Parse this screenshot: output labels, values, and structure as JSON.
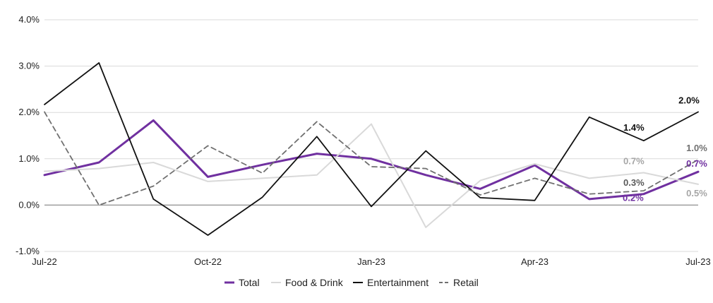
{
  "chart_data": {
    "type": "line",
    "title": "",
    "xlabel": "",
    "ylabel": "",
    "x": [
      "Jul-22",
      "Aug-22",
      "Sep-22",
      "Oct-22",
      "Nov-22",
      "Dec-22",
      "Jan-23",
      "Feb-23",
      "Mar-23",
      "Apr-23",
      "May-23",
      "Jun-23",
      "Jul-23"
    ],
    "x_tick_labels": [
      "Jul-22",
      "Oct-22",
      "Jan-23",
      "Apr-23",
      "Jul-23"
    ],
    "y_tick_labels": [
      "4.0%",
      "3.0%",
      "2.0%",
      "1.0%",
      "0.0%",
      "-1.0%"
    ],
    "ylim": [
      -1.0,
      4.0
    ],
    "y_ticks": [
      4.0,
      3.0,
      2.0,
      1.0,
      0.0,
      -1.0
    ],
    "grid": "horizontal",
    "legend_position": "bottom",
    "series": [
      {
        "name": "Total",
        "color": "#7030A0",
        "style": "solid",
        "values": [
          0.65,
          0.92,
          1.83,
          0.61,
          0.87,
          1.11,
          1.0,
          0.65,
          0.35,
          0.86,
          0.13,
          0.24,
          0.72
        ]
      },
      {
        "name": "Food & Drink",
        "color": "#D9D9D9",
        "style": "solid",
        "values": [
          0.73,
          0.79,
          0.92,
          0.51,
          0.58,
          0.65,
          1.75,
          -0.48,
          0.53,
          0.89,
          0.58,
          0.7,
          0.45
        ]
      },
      {
        "name": "Entertainment",
        "color": "#111111",
        "style": "solid",
        "values": [
          2.17,
          3.07,
          0.13,
          -0.65,
          0.17,
          1.48,
          -0.03,
          1.17,
          0.16,
          0.1,
          1.9,
          1.39,
          2.01
        ]
      },
      {
        "name": "Retail",
        "color": "#707070",
        "style": "dashed",
        "values": [
          2.01,
          0.0,
          0.41,
          1.28,
          0.69,
          1.8,
          0.83,
          0.79,
          0.22,
          0.58,
          0.24,
          0.31,
          0.98
        ]
      }
    ],
    "annotations": [
      {
        "text": "2.0%",
        "series": "Entertainment",
        "index": 12,
        "color": "#111111"
      },
      {
        "text": "1.4%",
        "series": "Entertainment",
        "index": 11,
        "color": "#111111"
      },
      {
        "text": "1.0%",
        "series": "Retail",
        "index": 12,
        "color": "#707070"
      },
      {
        "text": "0.7%",
        "series": "Food & Drink",
        "index": 11,
        "color": "#A6A6A6"
      },
      {
        "text": "0.7%",
        "series": "Total",
        "index": 12,
        "color": "#7030A0"
      },
      {
        "text": "0.3%",
        "series": "Retail",
        "index": 11,
        "color": "#595959"
      },
      {
        "text": "0.5%",
        "series": "Food & Drink",
        "index": 12,
        "color": "#A6A6A6"
      },
      {
        "text": "0.2%",
        "series": "Total",
        "index": 11,
        "color": "#7030A0"
      }
    ]
  }
}
